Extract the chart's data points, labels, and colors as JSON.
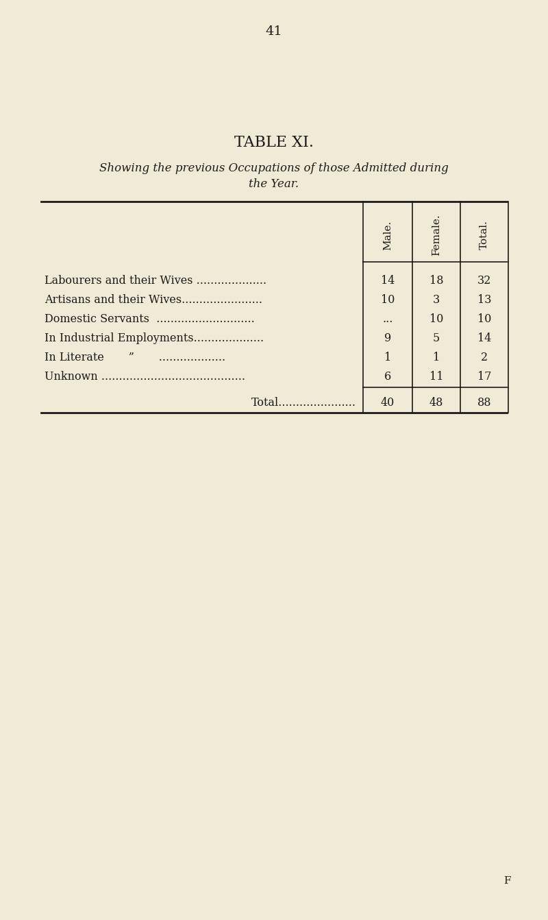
{
  "page_number": "41",
  "table_title": "TABLE XI.",
  "table_subtitle_line1": "Showing the previous Occupations of those Admitted during",
  "table_subtitle_line2": "the Year.",
  "col_headers": [
    "Male.",
    "Female.",
    "Total."
  ],
  "rows": [
    {
      "label": "Labourers and their Wives ....................",
      "male": "14",
      "female": "18",
      "total": "32"
    },
    {
      "label": "Artisans and their Wives.......................",
      "male": "10",
      "female": "3",
      "total": "13"
    },
    {
      "label": "Domestic Servants  ............................",
      "male": "...",
      "female": "10",
      "total": "10"
    },
    {
      "label": "In Industrial Employments....................",
      "male": "9",
      "female": "5",
      "total": "14"
    },
    {
      "label": "In Literate       ”       ...................",
      "male": "1",
      "female": "1",
      "total": "2"
    },
    {
      "label": "Unknown .........................................",
      "male": "6",
      "female": "11",
      "total": "17"
    }
  ],
  "total_row": {
    "label": "Total......................",
    "male": "40",
    "female": "48",
    "total": "88"
  },
  "footer": "F",
  "bg_color": "#f0ead6",
  "text_color": "#1a1a1a",
  "page_num_fontsize": 14,
  "title_fontsize": 16,
  "subtitle_fontsize": 12,
  "table_fontsize": 11.5,
  "header_fontsize": 11
}
